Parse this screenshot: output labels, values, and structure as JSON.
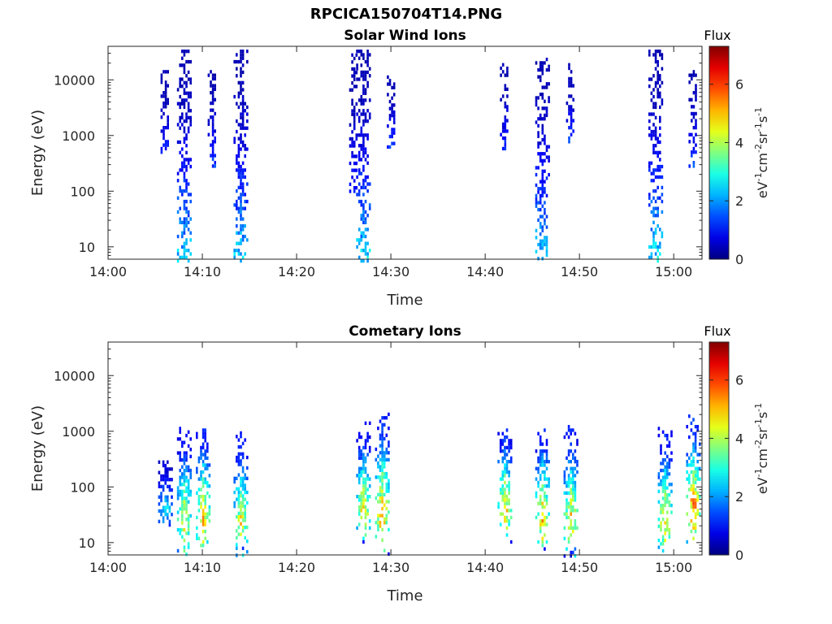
{
  "page_title": "RPCICA150704T14.PNG",
  "chart_data": [
    {
      "type": "heatmap",
      "title": "Solar Wind Ions",
      "xlabel": "Time",
      "ylabel": "Energy (eV)",
      "y_scale": "log",
      "ylim": [
        6,
        40000
      ],
      "xlim": [
        "14:00",
        "15:03"
      ],
      "x_ticks": [
        "14:00",
        "14:10",
        "14:20",
        "14:30",
        "14:40",
        "14:50",
        "15:00"
      ],
      "y_ticks": [
        "10",
        "100",
        "1000",
        "10000"
      ],
      "colorbar": {
        "label": "Flux",
        "unit_base": "eV",
        "unit_parts": [
          "-1",
          "cm",
          "-2",
          "sr",
          "-1",
          "s",
          "-1"
        ],
        "range": [
          0,
          7.3
        ],
        "ticks": [
          "0",
          "2",
          "4",
          "6"
        ],
        "colormap": "jet"
      },
      "bursts": [
        {
          "time": "14:06",
          "e_min": 500,
          "e_max": 15000,
          "flux_peak": 1.2
        },
        {
          "time": "14:08",
          "e_min": 6,
          "e_max": 35000,
          "flux_peak": 2.8
        },
        {
          "time": "14:11",
          "e_min": 300,
          "e_max": 15000,
          "flux_peak": 1.5
        },
        {
          "time": "14:14",
          "e_min": 6,
          "e_max": 35000,
          "flux_peak": 2.8
        },
        {
          "time": "14:26",
          "e_min": 100,
          "e_max": 30000,
          "flux_peak": 1.2
        },
        {
          "time": "14:27",
          "e_min": 6,
          "e_max": 35000,
          "flux_peak": 3.0
        },
        {
          "time": "14:30",
          "e_min": 600,
          "e_max": 12000,
          "flux_peak": 1.5
        },
        {
          "time": "14:42",
          "e_min": 500,
          "e_max": 20000,
          "flux_peak": 1.5
        },
        {
          "time": "14:46",
          "e_min": 6,
          "e_max": 25000,
          "flux_peak": 2.8
        },
        {
          "time": "14:49",
          "e_min": 800,
          "e_max": 20000,
          "flux_peak": 1.5
        },
        {
          "time": "14:58",
          "e_min": 6,
          "e_max": 35000,
          "flux_peak": 3.0
        },
        {
          "time": "15:02",
          "e_min": 300,
          "e_max": 15000,
          "flux_peak": 1.5
        }
      ]
    },
    {
      "type": "heatmap",
      "title": "Cometary Ions",
      "xlabel": "Time",
      "ylabel": "Energy (eV)",
      "y_scale": "log",
      "ylim": [
        6,
        40000
      ],
      "xlim": [
        "14:00",
        "15:03"
      ],
      "x_ticks": [
        "14:00",
        "14:10",
        "14:20",
        "14:30",
        "14:40",
        "14:50",
        "15:00"
      ],
      "y_ticks": [
        "10",
        "100",
        "1000",
        "10000"
      ],
      "colorbar": {
        "label": "Flux",
        "unit_base": "eV",
        "unit_parts": [
          "-1",
          "cm",
          "-2",
          "sr",
          "-1",
          "s",
          "-1"
        ],
        "range": [
          0,
          7.3
        ],
        "ticks": [
          "0",
          "2",
          "4",
          "6"
        ],
        "colormap": "jet"
      },
      "bursts": [
        {
          "time": "14:06",
          "e_min": 20,
          "e_max": 300,
          "flux_peak": 3.0
        },
        {
          "time": "14:08",
          "e_min": 6,
          "e_max": 1200,
          "flux_peak": 5.0
        },
        {
          "time": "14:10",
          "e_min": 6,
          "e_max": 1500,
          "flux_peak": 5.5
        },
        {
          "time": "14:14",
          "e_min": 6,
          "e_max": 1000,
          "flux_peak": 5.0
        },
        {
          "time": "14:27",
          "e_min": 10,
          "e_max": 1500,
          "flux_peak": 5.3
        },
        {
          "time": "14:29",
          "e_min": 6,
          "e_max": 2500,
          "flux_peak": 5.8
        },
        {
          "time": "14:42",
          "e_min": 10,
          "e_max": 1500,
          "flux_peak": 5.5
        },
        {
          "time": "14:46",
          "e_min": 6,
          "e_max": 1500,
          "flux_peak": 5.5
        },
        {
          "time": "14:49",
          "e_min": 6,
          "e_max": 1500,
          "flux_peak": 5.3
        },
        {
          "time": "14:59",
          "e_min": 6,
          "e_max": 1200,
          "flux_peak": 5.3
        },
        {
          "time": "15:02",
          "e_min": 10,
          "e_max": 2000,
          "flux_peak": 6.2
        }
      ]
    }
  ]
}
